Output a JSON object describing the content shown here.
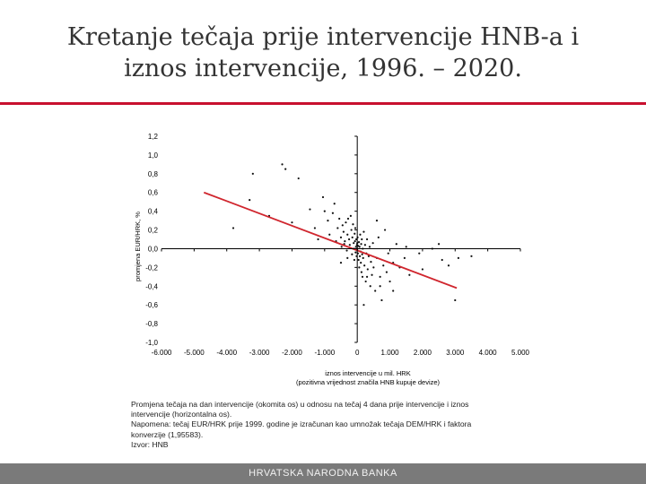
{
  "slide": {
    "title_line1": "Kretanje tečaja prije intervencije HNB-a i",
    "title_line2": "iznos intervencije, 1996. – 2020.",
    "accent_color": "#c8102e"
  },
  "notes": {
    "line1": "Promjena tečaja na dan intervencije (okomita os) u odnosu na tečaj 4 dana prije intervencije i iznos",
    "line2": "intervencije (horizontalna os).",
    "line3": "Napomena: tečaj EUR/HRK prije 1999. godine je izračunan kao umnožak tečaja DEM/HRK i faktora",
    "line4": "konverzije (1,95583).",
    "line5": "Izvor: HNB"
  },
  "footer": {
    "label": "HRVATSKA NARODNA BANKA"
  },
  "chart_data": {
    "type": "scatter",
    "xlabel_line1": "iznos intervencije u mil. HRK",
    "xlabel_line2": "(pozitivna vrijednost značila HNB kupuje devize)",
    "ylabel": "promjena EUR/HRK, %",
    "xlim": [
      -6000,
      5000
    ],
    "ylim": [
      -1.0,
      1.2
    ],
    "x_ticks": [
      -6000,
      -5000,
      -4000,
      -3000,
      -2000,
      -1000,
      0,
      1000,
      2000,
      3000,
      4000,
      5000
    ],
    "x_tick_labels": [
      "-6.000",
      "-5.000",
      "-4.000",
      "-3.000",
      "-2.000",
      "-1.000",
      "0",
      "1.000",
      "2.000",
      "3.000",
      "4.000",
      "5.000"
    ],
    "y_ticks": [
      -1.0,
      -0.8,
      -0.6,
      -0.4,
      -0.2,
      0.0,
      0.2,
      0.4,
      0.6,
      0.8,
      1.0,
      1.2
    ],
    "y_tick_labels": [
      "-1,0",
      "-0,8",
      "-0,6",
      "-0,4",
      "-0,2",
      "0,0",
      "0,2",
      "0,4",
      "0,6",
      "0,8",
      "1,0",
      "1,2"
    ],
    "trend_line": {
      "x": [
        -4700,
        3050
      ],
      "y": [
        0.6,
        -0.42
      ],
      "color": "#d0262e"
    },
    "grid": false,
    "points": [
      [
        -3200,
        0.8
      ],
      [
        -2300,
        0.9
      ],
      [
        -1800,
        0.75
      ],
      [
        -3300,
        0.52
      ],
      [
        -2700,
        0.35
      ],
      [
        -3800,
        0.22
      ],
      [
        -2000,
        0.28
      ],
      [
        -1450,
        0.42
      ],
      [
        -1300,
        0.22
      ],
      [
        -1200,
        0.1
      ],
      [
        -1050,
        0.55
      ],
      [
        -900,
        0.3
      ],
      [
        -850,
        0.15
      ],
      [
        -750,
        0.38
      ],
      [
        -700,
        0.48
      ],
      [
        -650,
        0.08
      ],
      [
        -600,
        0.22
      ],
      [
        -550,
        0.32
      ],
      [
        -500,
        0.12
      ],
      [
        -480,
        0.02
      ],
      [
        -450,
        0.25
      ],
      [
        -420,
        0.18
      ],
      [
        -400,
        0.05
      ],
      [
        -380,
        0.08
      ],
      [
        -350,
        0.28
      ],
      [
        -320,
        -0.02
      ],
      [
        -300,
        0.15
      ],
      [
        -280,
        0.32
      ],
      [
        -250,
        0.1
      ],
      [
        -230,
        0.04
      ],
      [
        -200,
        0.35
      ],
      [
        -180,
        0.2
      ],
      [
        -160,
        -0.06
      ],
      [
        -150,
        0.12
      ],
      [
        -130,
        0.26
      ],
      [
        -110,
        0.06
      ],
      [
        -100,
        0.0
      ],
      [
        -90,
        -0.12
      ],
      [
        -80,
        0.16
      ],
      [
        -70,
        0.08
      ],
      [
        -60,
        0.22
      ],
      [
        -50,
        -0.04
      ],
      [
        -40,
        0.02
      ],
      [
        -30,
        0.1
      ],
      [
        -20,
        -0.08
      ],
      [
        -10,
        0.04
      ],
      [
        0,
        0.0
      ],
      [
        0,
        0.06
      ],
      [
        0,
        -0.02
      ],
      [
        10,
        0.12
      ],
      [
        20,
        -0.05
      ],
      [
        30,
        0.03
      ],
      [
        40,
        -0.12
      ],
      [
        50,
        0.07
      ],
      [
        60,
        -0.2
      ],
      [
        70,
        0.02
      ],
      [
        80,
        -0.08
      ],
      [
        90,
        0.15
      ],
      [
        100,
        -0.03
      ],
      [
        110,
        -0.15
      ],
      [
        120,
        0.05
      ],
      [
        130,
        -0.25
      ],
      [
        140,
        0.1
      ],
      [
        150,
        -0.06
      ],
      [
        160,
        -0.3
      ],
      [
        170,
        0.0
      ],
      [
        180,
        -0.1
      ],
      [
        200,
        0.18
      ],
      [
        220,
        -0.18
      ],
      [
        240,
        0.04
      ],
      [
        260,
        -0.35
      ],
      [
        280,
        -0.05
      ],
      [
        300,
        0.1
      ],
      [
        320,
        -0.22
      ],
      [
        350,
        -0.08
      ],
      [
        380,
        0.02
      ],
      [
        400,
        -0.4
      ],
      [
        420,
        -0.14
      ],
      [
        450,
        -0.28
      ],
      [
        480,
        0.06
      ],
      [
        500,
        -0.2
      ],
      [
        550,
        -0.45
      ],
      [
        600,
        -0.1
      ],
      [
        650,
        0.12
      ],
      [
        700,
        -0.3
      ],
      [
        750,
        -0.55
      ],
      [
        800,
        -0.18
      ],
      [
        850,
        0.2
      ],
      [
        900,
        -0.25
      ],
      [
        950,
        -0.05
      ],
      [
        1000,
        -0.35
      ],
      [
        1100,
        -0.15
      ],
      [
        1200,
        0.05
      ],
      [
        1300,
        -0.2
      ],
      [
        1450,
        -0.1
      ],
      [
        1600,
        -0.28
      ],
      [
        1900,
        -0.05
      ],
      [
        2000,
        -0.22
      ],
      [
        2300,
        0.0
      ],
      [
        2600,
        -0.12
      ],
      [
        2800,
        -0.18
      ],
      [
        3100,
        -0.1
      ],
      [
        3500,
        -0.08
      ],
      [
        2500,
        0.05
      ],
      [
        -500,
        -0.15
      ],
      [
        700,
        -0.4
      ],
      [
        300,
        -0.3
      ],
      [
        -1000,
        0.4
      ],
      [
        1500,
        0.02
      ],
      [
        3000,
        -0.55
      ],
      [
        -2200,
        0.85
      ],
      [
        200,
        -0.6
      ],
      [
        -300,
        -0.1
      ],
      [
        600,
        0.3
      ],
      [
        1100,
        -0.45
      ]
    ]
  }
}
